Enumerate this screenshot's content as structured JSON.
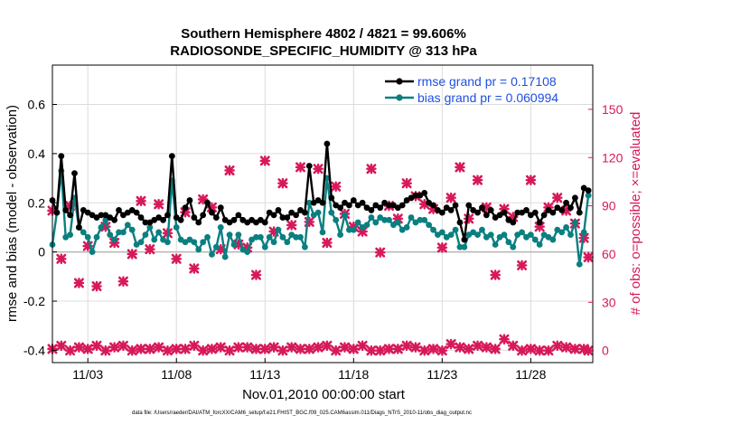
{
  "chart_data": {
    "type": "line",
    "title_line1": "Southern Hemisphere 4802 / 4821 = 99.606%",
    "title_line2": "RADIOSONDE_SPECIFIC_HUMIDITY @ 313 hPa",
    "xlabel": "Nov.01,2010 00:00:00 start",
    "ylabel_left": "rmse and bias (model - observation)",
    "ylabel_right": "# of obs: o=possible; ×=evaluated",
    "footnote": "data file: /Users/raeder/DAI/ATM_forcXX/CAM6_setup/f.e21.FHIST_BGC.f09_025.CAM6assim.011/Diags_NTrS_2010-11/obs_diag_output.nc",
    "xlim": [
      1.0,
      31.5
    ],
    "ylim_left": [
      -0.45,
      0.76
    ],
    "ylim_right": [
      -7.5,
      177.5
    ],
    "x_ticks": [
      3,
      8,
      13,
      18,
      23,
      28
    ],
    "x_tick_labels": [
      "11/03",
      "11/08",
      "11/13",
      "11/18",
      "11/23",
      "11/28"
    ],
    "y_ticks_left": [
      -0.4,
      -0.2,
      0,
      0.2,
      0.4,
      0.6
    ],
    "y_tick_labels_left": [
      "-0.4",
      "-0.2",
      "0",
      "0.2",
      "0.4",
      "0.6"
    ],
    "y_ticks_right": [
      0,
      30,
      60,
      90,
      120,
      150
    ],
    "y_tick_labels_right": [
      "0",
      "30",
      "60",
      "90",
      "120",
      "150"
    ],
    "zero_line": 0,
    "colors": {
      "rmse": "#000000",
      "bias": "#0b7f80",
      "obs": "#d7195a",
      "legend_text": "#1f4fe0",
      "right_axis": "#d7195a",
      "zero_line": "#b5b5b5",
      "grid": "#dcdcdc"
    },
    "x": [
      1.0,
      1.25,
      1.5,
      1.75,
      2.0,
      2.25,
      2.5,
      2.75,
      3.0,
      3.25,
      3.5,
      3.75,
      4.0,
      4.25,
      4.5,
      4.75,
      5.0,
      5.25,
      5.5,
      5.75,
      6.0,
      6.25,
      6.5,
      6.75,
      7.0,
      7.25,
      7.5,
      7.75,
      8.0,
      8.25,
      8.5,
      8.75,
      9.0,
      9.25,
      9.5,
      9.75,
      10.0,
      10.25,
      10.5,
      10.75,
      11.0,
      11.25,
      11.5,
      11.75,
      12.0,
      12.25,
      12.5,
      12.75,
      13.0,
      13.25,
      13.5,
      13.75,
      14.0,
      14.25,
      14.5,
      14.75,
      15.0,
      15.25,
      15.5,
      15.75,
      16.0,
      16.25,
      16.5,
      16.75,
      17.0,
      17.25,
      17.5,
      17.75,
      18.0,
      18.25,
      18.5,
      18.75,
      19.0,
      19.25,
      19.5,
      19.75,
      20.0,
      20.25,
      20.5,
      20.75,
      21.0,
      21.25,
      21.5,
      21.75,
      22.0,
      22.25,
      22.5,
      22.75,
      23.0,
      23.25,
      23.5,
      23.75,
      24.0,
      24.25,
      24.5,
      24.75,
      25.0,
      25.25,
      25.5,
      25.75,
      26.0,
      26.25,
      26.5,
      26.75,
      27.0,
      27.25,
      27.5,
      27.75,
      28.0,
      28.25,
      28.5,
      28.75,
      29.0,
      29.25,
      29.5,
      29.75,
      30.0,
      30.25,
      30.5,
      30.75,
      31.0,
      31.25
    ],
    "series": [
      {
        "name": "rmse grand pr = 0.17108",
        "key": "rmse",
        "values": [
          0.21,
          0.16,
          0.39,
          0.17,
          0.15,
          0.32,
          0.1,
          0.17,
          0.16,
          0.15,
          0.14,
          0.15,
          0.15,
          0.14,
          0.13,
          0.17,
          0.15,
          0.16,
          0.17,
          0.16,
          0.14,
          0.12,
          0.12,
          0.13,
          0.14,
          0.13,
          0.15,
          0.39,
          0.14,
          0.13,
          0.18,
          0.21,
          0.14,
          0.12,
          0.15,
          0.2,
          0.16,
          0.14,
          0.18,
          0.13,
          0.12,
          0.13,
          0.15,
          0.13,
          0.12,
          0.13,
          0.12,
          0.13,
          0.12,
          0.16,
          0.15,
          0.17,
          0.14,
          0.14,
          0.16,
          0.15,
          0.17,
          0.16,
          0.35,
          0.2,
          0.21,
          0.2,
          0.44,
          0.22,
          0.19,
          0.18,
          0.2,
          0.19,
          0.21,
          0.19,
          0.2,
          0.18,
          0.17,
          0.19,
          0.18,
          0.2,
          0.19,
          0.19,
          0.18,
          0.19,
          0.21,
          0.22,
          0.23,
          0.23,
          0.24,
          0.2,
          0.19,
          0.17,
          0.16,
          0.18,
          0.17,
          0.19,
          0.12,
          0.05,
          0.19,
          0.17,
          0.16,
          0.18,
          0.15,
          0.17,
          0.14,
          0.15,
          0.16,
          0.13,
          0.12,
          0.16,
          0.16,
          0.17,
          0.15,
          0.16,
          0.12,
          0.15,
          0.17,
          0.16,
          0.18,
          0.17,
          0.2,
          0.18,
          0.22,
          0.16,
          0.26,
          0.25
        ]
      },
      {
        "name": "bias grand pr = 0.060994",
        "key": "bias",
        "values": [
          0.03,
          0.16,
          0.33,
          0.06,
          0.07,
          0.22,
          0.1,
          0.08,
          0.06,
          0.0,
          0.06,
          0.1,
          0.13,
          0.07,
          0.05,
          0.08,
          0.08,
          0.11,
          0.09,
          0.03,
          0.04,
          0.07,
          0.1,
          0.05,
          0.08,
          0.05,
          0.04,
          0.29,
          0.1,
          0.05,
          0.04,
          0.05,
          0.04,
          0.01,
          0.04,
          0.06,
          -0.01,
          0.02,
          0.1,
          -0.02,
          0.07,
          0.03,
          0.07,
          0.01,
          0.0,
          0.05,
          0.06,
          0.06,
          0.02,
          0.06,
          0.04,
          0.09,
          0.06,
          0.04,
          0.07,
          0.06,
          0.06,
          0.02,
          0.2,
          0.15,
          0.16,
          0.08,
          0.3,
          0.16,
          0.13,
          0.07,
          0.15,
          0.09,
          0.09,
          0.12,
          0.1,
          0.11,
          0.14,
          0.12,
          0.14,
          0.13,
          0.13,
          0.11,
          0.12,
          0.09,
          0.1,
          0.14,
          0.12,
          0.13,
          0.13,
          0.11,
          0.09,
          0.07,
          0.08,
          0.06,
          0.07,
          0.09,
          0.02,
          0.02,
          0.07,
          0.08,
          0.07,
          0.09,
          0.06,
          0.07,
          0.03,
          0.06,
          0.07,
          0.04,
          0.02,
          0.07,
          0.08,
          0.06,
          0.07,
          0.05,
          0.03,
          0.07,
          0.06,
          0.05,
          0.09,
          0.08,
          0.1,
          0.07,
          0.12,
          -0.05,
          0.08,
          0.23
        ]
      }
    ],
    "obs_evaluated": {
      "name": "# of obs evaluated",
      "x": [
        1.0,
        1.5,
        2.0,
        2.5,
        3.0,
        3.5,
        4.0,
        4.5,
        5.0,
        5.5,
        6.0,
        6.5,
        7.0,
        7.5,
        8.0,
        8.5,
        9.0,
        9.5,
        10.0,
        10.5,
        11.0,
        11.5,
        12.0,
        12.5,
        13.0,
        13.5,
        14.0,
        14.5,
        15.0,
        15.5,
        16.0,
        16.5,
        17.0,
        17.5,
        18.0,
        18.5,
        19.0,
        19.5,
        20.0,
        20.5,
        21.0,
        21.5,
        22.0,
        22.5,
        23.0,
        23.5,
        24.0,
        24.5,
        25.0,
        25.5,
        26.0,
        26.5,
        27.0,
        27.5,
        28.0,
        28.5,
        29.0,
        29.5,
        30.0,
        30.5,
        31.0,
        31.25
      ],
      "values": [
        87,
        57,
        90,
        42,
        65,
        40,
        77,
        67,
        43,
        60,
        93,
        63,
        91,
        73,
        57,
        86,
        51,
        94,
        89,
        63,
        112,
        66,
        64,
        47,
        118,
        74,
        104,
        78,
        114,
        80,
        113,
        67,
        102,
        85,
        77,
        74,
        113,
        61,
        90,
        82,
        104,
        96,
        91,
        88,
        64,
        95,
        114,
        82,
        106,
        89,
        47,
        88,
        83,
        53,
        106,
        77,
        89,
        95,
        87,
        79,
        70,
        58
      ],
      "baseline_x": [
        1.0,
        1.5,
        2.0,
        2.5,
        3.0,
        3.5,
        4.0,
        4.5,
        5.0,
        5.5,
        6.0,
        6.5,
        7.0,
        7.5,
        8.0,
        8.5,
        9.0,
        9.5,
        10.0,
        10.5,
        11.0,
        11.5,
        12.0,
        12.5,
        13.0,
        13.5,
        14.0,
        14.5,
        15.0,
        15.5,
        16.0,
        16.5,
        17.0,
        17.5,
        18.0,
        18.5,
        19.0,
        19.5,
        20.0,
        20.5,
        21.0,
        21.5,
        22.0,
        22.5,
        23.0,
        23.5,
        24.0,
        24.5,
        25.0,
        25.5,
        26.0,
        26.5,
        27.0,
        27.5,
        28.0,
        28.5,
        29.0,
        29.5,
        30.0,
        30.5,
        31.0,
        31.25
      ],
      "baseline_values": [
        1,
        3,
        0,
        2,
        1,
        3,
        0,
        2,
        3,
        0,
        1,
        1,
        2,
        0,
        1,
        1,
        3,
        0,
        1,
        2,
        0,
        2,
        2,
        1,
        1,
        2,
        0,
        2,
        1,
        1,
        2,
        3,
        0,
        2,
        1,
        3,
        0,
        0,
        1,
        1,
        3,
        2,
        0,
        1,
        0,
        4,
        2,
        1,
        3,
        2,
        1,
        7,
        3,
        0,
        1,
        0,
        0,
        3,
        2,
        1,
        1,
        0
      ]
    }
  }
}
